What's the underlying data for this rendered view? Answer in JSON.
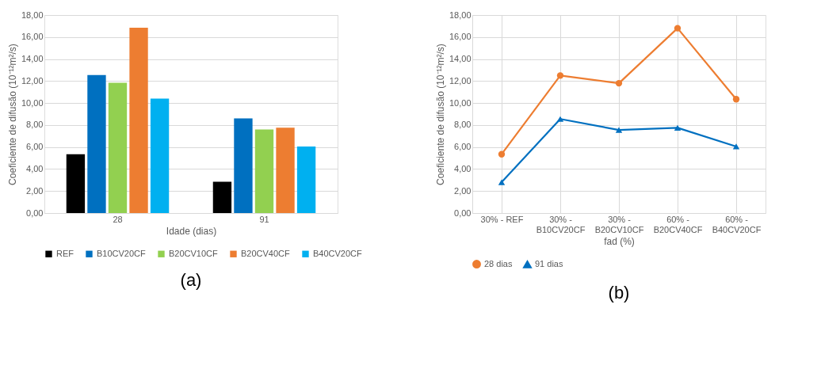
{
  "chart_data": [
    {
      "type": "bar",
      "categories": [
        "28",
        "91"
      ],
      "xlabel": "Idade (dias)",
      "ylabel": "Coeficiente de difusão (10⁻¹²m²/s)",
      "series": [
        {
          "name": "REF",
          "color": "#000000",
          "values": [
            5.35,
            2.85
          ]
        },
        {
          "name": "B10CV20CF",
          "color": "#0070c0",
          "values": [
            12.55,
            8.6
          ]
        },
        {
          "name": "B20CV10CF",
          "color": "#92d050",
          "values": [
            11.85,
            7.6
          ]
        },
        {
          "name": "B20CV40CF",
          "color": "#ed7d31",
          "values": [
            16.85,
            7.75
          ]
        },
        {
          "name": "B40CV20CF",
          "color": "#00b0f0",
          "values": [
            10.4,
            6.05
          ]
        }
      ],
      "ylim": [
        0,
        18
      ],
      "yticks": [
        {
          "value": 0,
          "label": "0,00"
        },
        {
          "value": 2,
          "label": "2,00"
        },
        {
          "value": 4,
          "label": "4,00"
        },
        {
          "value": 6,
          "label": "6,00"
        },
        {
          "value": 8,
          "label": "8,00"
        },
        {
          "value": 10,
          "label": "10,00"
        },
        {
          "value": 12,
          "label": "12,00"
        },
        {
          "value": 14,
          "label": "14,00"
        },
        {
          "value": 16,
          "label": "16,00"
        },
        {
          "value": 18,
          "label": "18,00"
        }
      ],
      "grid": "y",
      "legend": "bottom",
      "annotations": [
        "(a)"
      ]
    },
    {
      "type": "line",
      "categories": [
        "30% - REF",
        "30% -\nB10CV20CF",
        "30% -\nB20CV10CF",
        "60% -\nB20CV40CF",
        "60% -\nB40CV20CF"
      ],
      "xlabel": "fad (%)",
      "ylabel": "Coeficiente de difusão (10⁻¹²m²/s)",
      "series": [
        {
          "name": "28 dias",
          "color": "#ed7d31",
          "marker": "circle",
          "values": [
            5.35,
            12.5,
            11.8,
            16.8,
            10.35
          ]
        },
        {
          "name": "91 dias",
          "color": "#0070c0",
          "marker": "triangle",
          "values": [
            2.8,
            8.55,
            7.55,
            7.75,
            6.05
          ]
        }
      ],
      "ylim": [
        0,
        18
      ],
      "yticks": [
        {
          "value": 0,
          "label": "0,00"
        },
        {
          "value": 2,
          "label": "2,00"
        },
        {
          "value": 4,
          "label": "4,00"
        },
        {
          "value": 6,
          "label": "6,00"
        },
        {
          "value": 8,
          "label": "8,00"
        },
        {
          "value": 10,
          "label": "10,00"
        },
        {
          "value": 12,
          "label": "12,00"
        },
        {
          "value": 14,
          "label": "14,00"
        },
        {
          "value": 16,
          "label": "16,00"
        },
        {
          "value": 18,
          "label": "18,00"
        }
      ],
      "grid": true,
      "legend": "bottom",
      "line_style": "solid",
      "annotations": [
        "(b)"
      ]
    }
  ]
}
